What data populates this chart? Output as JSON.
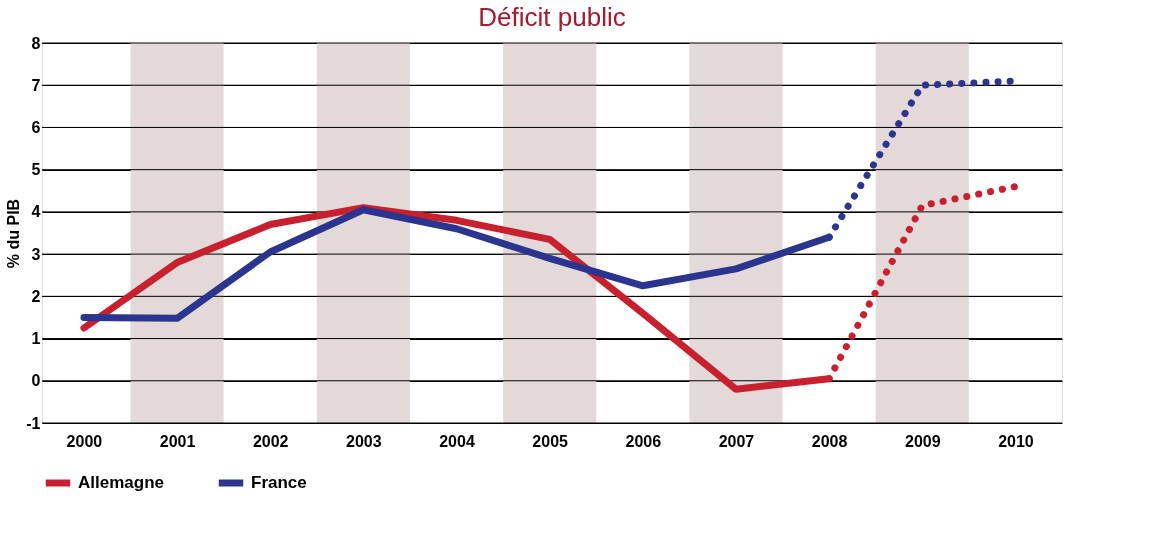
{
  "chart_data": {
    "type": "line",
    "title": "Déficit public",
    "ylabel": "% du PIB",
    "x": [
      2000,
      2001,
      2002,
      2003,
      2004,
      2005,
      2006,
      2007,
      2008
    ],
    "series": [
      {
        "name": "Allemagne",
        "color": "#c8202f",
        "values": [
          1.25,
          2.8,
          3.7,
          4.1,
          3.8,
          3.35,
          1.6,
          -0.2,
          0.05
        ]
      },
      {
        "name": "France",
        "color": "#2b3590",
        "values": [
          1.5,
          1.48,
          3.05,
          4.05,
          3.6,
          2.9,
          2.25,
          2.65,
          3.4
        ]
      },
      {
        "color": "#c8202f",
        "x": [
          2008,
          2009,
          2010
        ],
        "values": [
          0.05,
          4.15,
          4.6
        ],
        "line_style": "dotted"
      },
      {
        "color": "#2b3590",
        "x": [
          2008,
          2009,
          2010
        ],
        "values": [
          3.4,
          7.0,
          7.1
        ],
        "line_style": "dotted"
      }
    ],
    "xlim": [
      1999.55,
      2010.5
    ],
    "xticks": [
      2000,
      2001,
      2002,
      2003,
      2004,
      2005,
      2006,
      2007,
      2008,
      2009,
      2010
    ],
    "ylim": [
      -1,
      8
    ],
    "yticks": [
      -1,
      0,
      1,
      2,
      3,
      4,
      5,
      6,
      7,
      8
    ],
    "bands": [
      {
        "axis": "x",
        "from": 2000.5,
        "to": 2001.5,
        "color": "#e3d9d9"
      },
      {
        "axis": "x",
        "from": 2002.5,
        "to": 2003.5,
        "color": "#e3d9d9"
      },
      {
        "axis": "x",
        "from": 2004.5,
        "to": 2005.5,
        "color": "#e3d9d9"
      },
      {
        "axis": "x",
        "from": 2006.5,
        "to": 2007.5,
        "color": "#e3d9d9"
      },
      {
        "axis": "x",
        "from": 2008.5,
        "to": 2009.5,
        "color": "#e3d9d9"
      }
    ],
    "grid": "y",
    "legend": "bottom",
    "line_style": "solid",
    "marker": "none"
  }
}
